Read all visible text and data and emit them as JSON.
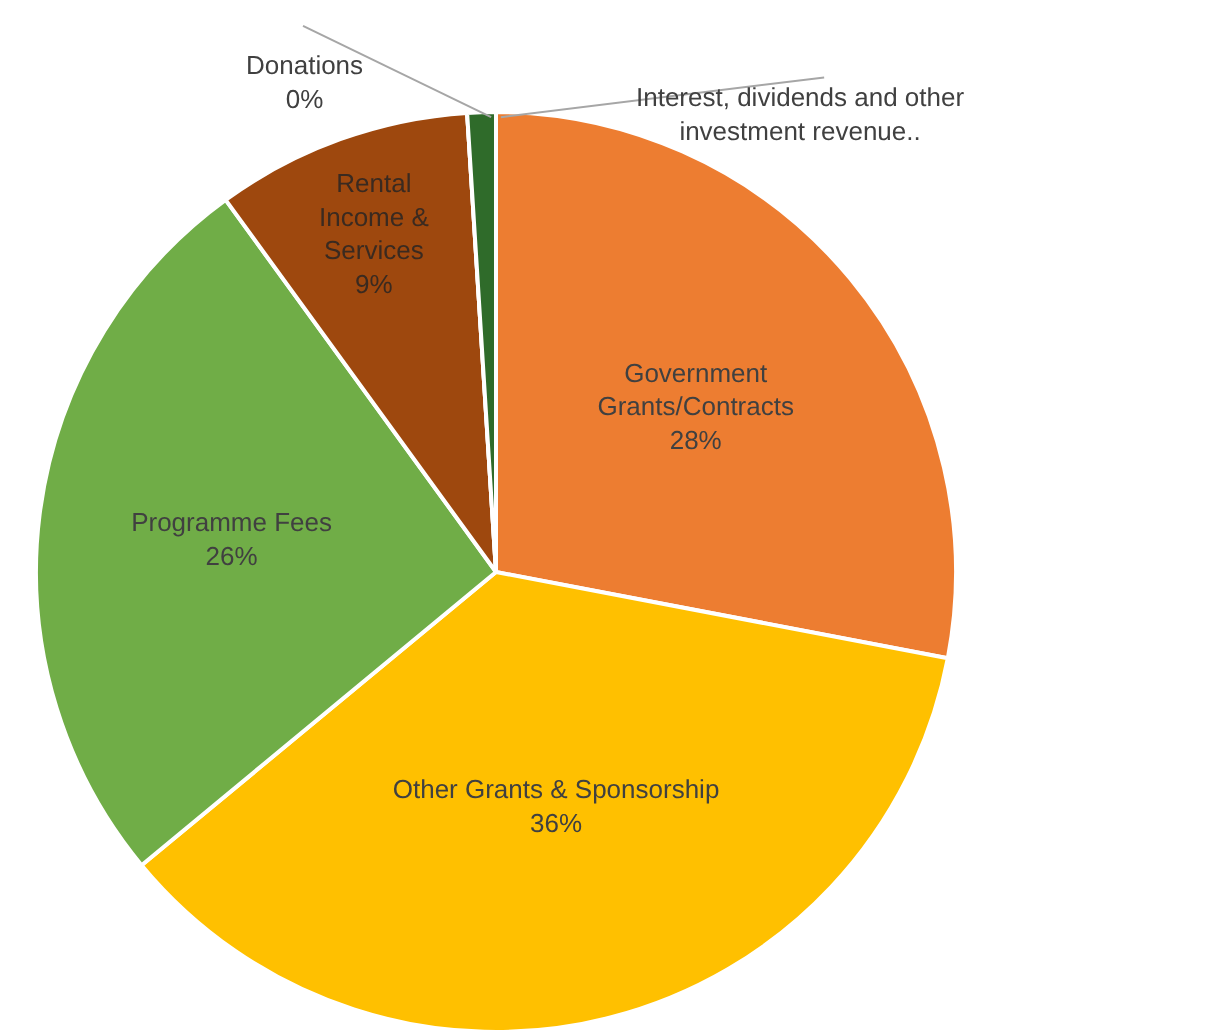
{
  "chart_data": {
    "type": "pie",
    "categories": [
      "Government Grants/Contracts",
      "Other Grants & Sponsorship",
      "Programme Fees",
      "Rental Income & Services",
      "Donations",
      "Interest, dividends and other investment revenue.."
    ],
    "values": [
      28,
      36,
      26,
      9,
      0,
      1
    ],
    "value_labels": [
      "28%",
      "36%",
      "26%",
      "9%",
      "0%",
      null
    ],
    "colors": [
      "#ed7d31",
      "#ffc000",
      "#70ad47",
      "#9e480e",
      "#dbe4f0",
      "#2f6b2a"
    ]
  }
}
